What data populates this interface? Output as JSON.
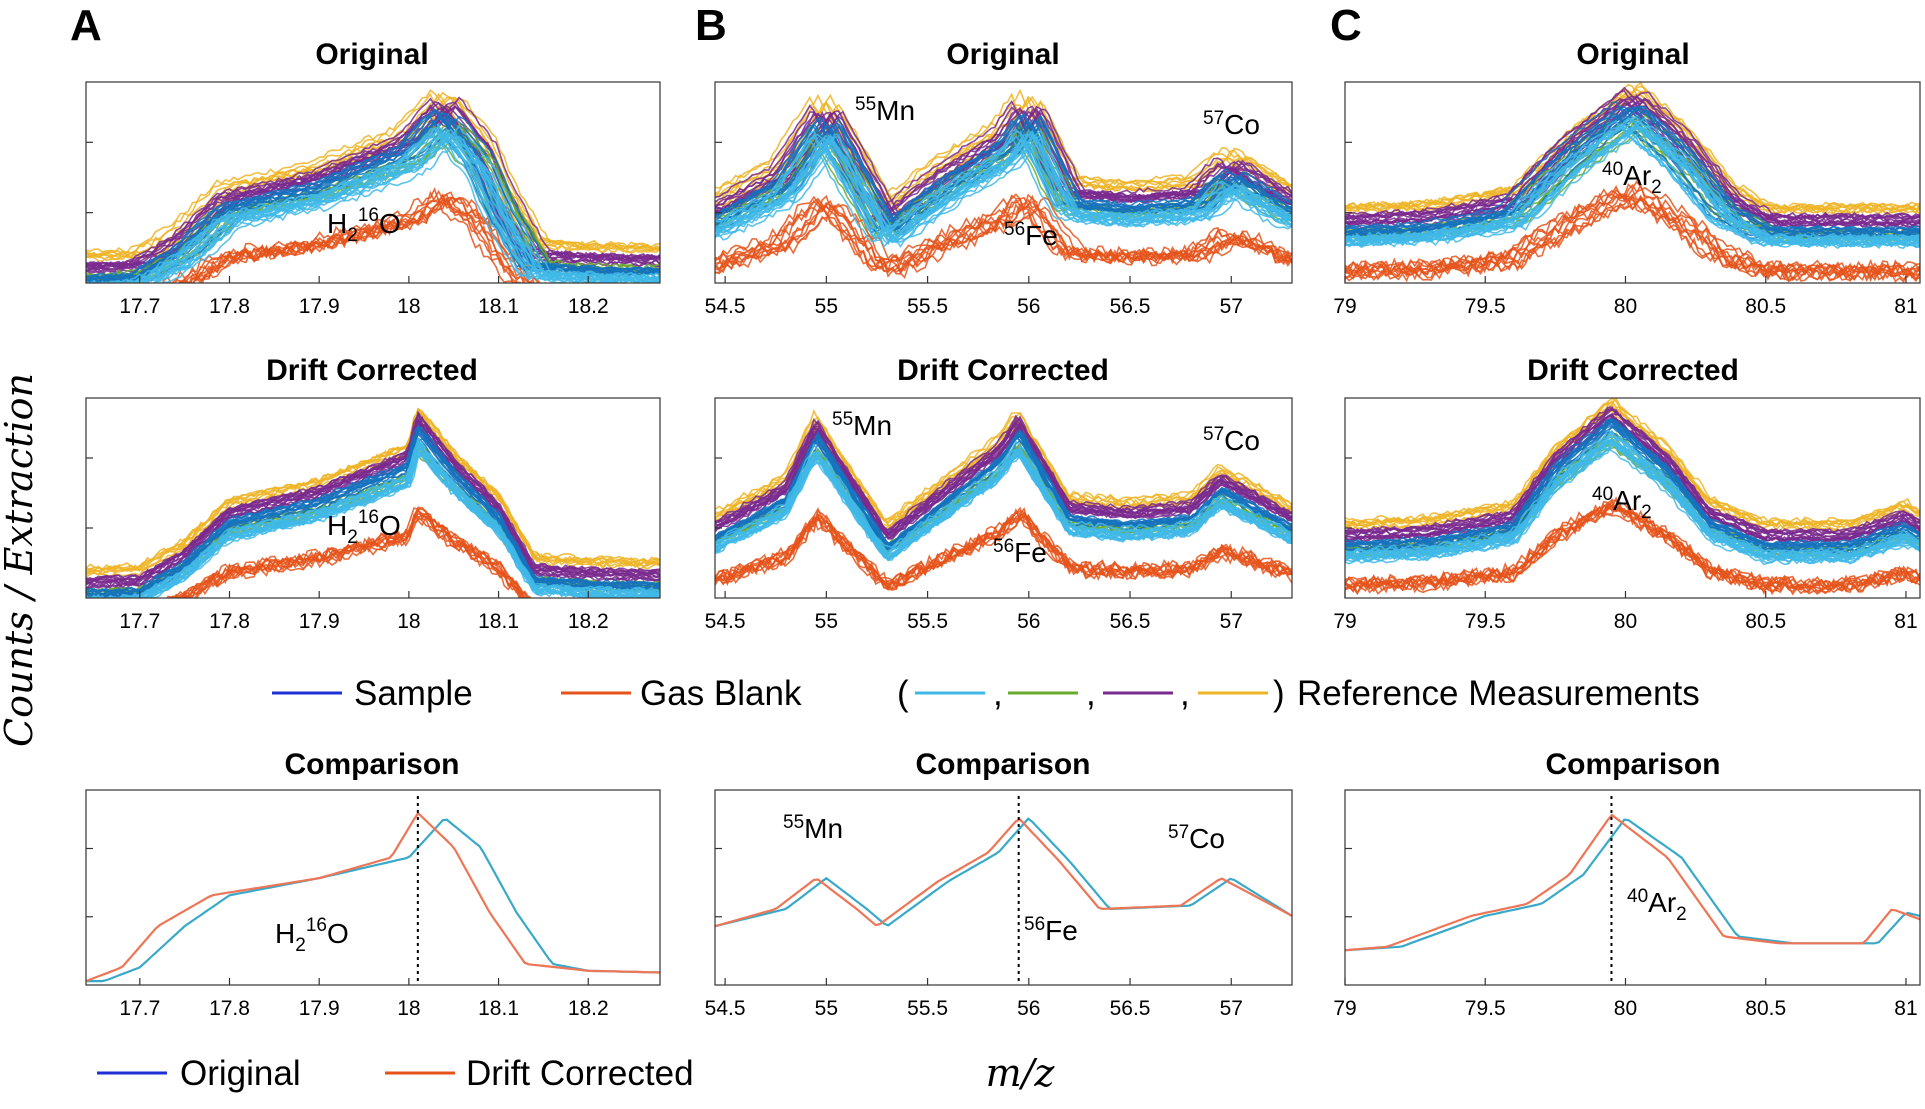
{
  "figure": {
    "ylabel": "Counts / Extraction",
    "xlabel": "m/z"
  },
  "colors": {
    "sample": "#1f2fd6",
    "gas_blank": "#e5531b",
    "ref1": "#3fb8e8",
    "ref2": "#6aaa2e",
    "ref3": "#7a2a8e",
    "ref4": "#eeb426",
    "original": "#3aa9c8",
    "drift_corrected": "#ee7555",
    "sample_dense": "#1572bd"
  },
  "legend_top": {
    "sample": "Sample",
    "gas_blank": "Gas Blank",
    "open_paren": "(",
    "comma": ",",
    "close_paren": ")",
    "reference": "Reference Measurements"
  },
  "legend_bottom": {
    "original": "Original",
    "drift_corrected": "Drift Corrected"
  },
  "panels": [
    {
      "letter": "A",
      "titles": [
        "Original",
        "Drift Corrected",
        "Comparison"
      ],
      "label_main": "H",
      "label_sub": "2",
      "label_sup": "16",
      "label_tail": "O"
    },
    {
      "letter": "B",
      "titles": [
        "Original",
        "Drift Corrected",
        "Comparison"
      ],
      "mn": {
        "sup": "55",
        "el": "Mn"
      },
      "fe": {
        "sup": "56",
        "el": "Fe"
      },
      "co": {
        "sup": "57",
        "el": "Co"
      }
    },
    {
      "letter": "C",
      "titles": [
        "Original",
        "Drift Corrected",
        "Comparison"
      ],
      "label_sup": "40",
      "label_main": "Ar",
      "label_sub": "2"
    }
  ],
  "chart_data": [
    {
      "type": "line",
      "title": "Original",
      "panel": "A",
      "x_ticks": [
        "17.7",
        "17.8",
        "17.9",
        "18",
        "18.1",
        "18.2"
      ],
      "xlim": [
        17.64,
        18.28
      ],
      "series": [
        {
          "x": [
            17.64,
            17.7,
            17.75,
            17.8,
            17.9,
            18.0,
            18.04,
            18.08,
            18.1,
            18.14,
            18.2,
            18.28
          ],
          "values": [
            0.05,
            0.06,
            0.2,
            0.42,
            0.53,
            0.72,
            0.92,
            0.68,
            0.45,
            0.12,
            0.1,
            0.09
          ]
        }
      ]
    },
    {
      "type": "line",
      "title": "Drift Corrected",
      "panel": "A",
      "x_ticks": [
        "17.7",
        "17.8",
        "17.9",
        "18",
        "18.1",
        "18.2"
      ],
      "xlim": [
        17.64,
        18.28
      ],
      "series": [
        {
          "x": [
            17.64,
            17.7,
            17.75,
            17.8,
            17.9,
            18.0,
            18.01,
            18.05,
            18.1,
            18.14,
            18.2,
            18.28
          ],
          "values": [
            0.05,
            0.06,
            0.2,
            0.42,
            0.53,
            0.72,
            0.92,
            0.68,
            0.45,
            0.12,
            0.1,
            0.09
          ]
        }
      ]
    },
    {
      "type": "line",
      "title": "Comparison",
      "panel": "A",
      "x_ticks": [
        "17.7",
        "17.8",
        "17.9",
        "18",
        "18.1",
        "18.2"
      ],
      "xlim": [
        17.64,
        18.28
      ],
      "series": [
        {
          "name": "Original",
          "x": [
            17.66,
            17.7,
            17.75,
            17.8,
            17.9,
            18.0,
            18.04,
            18.08,
            18.12,
            18.16,
            18.2,
            18.28
          ],
          "values": [
            0.0,
            0.08,
            0.32,
            0.5,
            0.6,
            0.72,
            0.95,
            0.78,
            0.4,
            0.1,
            0.06,
            0.05
          ]
        },
        {
          "name": "Drift Corrected",
          "x": [
            17.64,
            17.68,
            17.72,
            17.78,
            17.9,
            17.98,
            18.01,
            18.05,
            18.09,
            18.13,
            18.2,
            18.28
          ],
          "values": [
            0.0,
            0.08,
            0.32,
            0.5,
            0.6,
            0.72,
            0.98,
            0.78,
            0.4,
            0.1,
            0.06,
            0.05
          ]
        }
      ]
    },
    {
      "type": "line",
      "title": "Original",
      "panel": "B",
      "x_ticks": [
        "54.5",
        "55",
        "55.5",
        "56",
        "56.5",
        "57"
      ],
      "xlim": [
        54.45,
        57.3
      ],
      "series": [
        {
          "x": [
            54.45,
            54.8,
            55.0,
            55.3,
            55.6,
            55.9,
            56.0,
            56.2,
            56.5,
            56.85,
            57.0,
            57.3
          ],
          "values": [
            0.35,
            0.55,
            0.88,
            0.3,
            0.55,
            0.75,
            0.9,
            0.45,
            0.42,
            0.45,
            0.6,
            0.4
          ]
        }
      ]
    },
    {
      "type": "line",
      "title": "Drift Corrected",
      "panel": "B",
      "x_ticks": [
        "54.5",
        "55",
        "55.5",
        "56",
        "56.5",
        "57"
      ],
      "xlim": [
        54.45,
        57.3
      ],
      "series": [
        {
          "x": [
            54.45,
            54.8,
            54.95,
            55.3,
            55.6,
            55.85,
            55.95,
            56.2,
            56.5,
            56.8,
            56.95,
            57.3
          ],
          "values": [
            0.35,
            0.55,
            0.88,
            0.3,
            0.55,
            0.75,
            0.9,
            0.45,
            0.42,
            0.45,
            0.6,
            0.4
          ]
        }
      ]
    },
    {
      "type": "line",
      "title": "Comparison",
      "panel": "B",
      "x_ticks": [
        "54.5",
        "55",
        "55.5",
        "56",
        "56.5",
        "57"
      ],
      "xlim": [
        54.45,
        57.3
      ],
      "series": [
        {
          "name": "Original",
          "x": [
            54.45,
            54.8,
            55.0,
            55.2,
            55.3,
            55.6,
            55.85,
            56.0,
            56.2,
            56.4,
            56.8,
            57.0,
            57.3
          ],
          "values": [
            0.32,
            0.42,
            0.6,
            0.42,
            0.32,
            0.58,
            0.75,
            0.95,
            0.7,
            0.42,
            0.44,
            0.6,
            0.38
          ]
        },
        {
          "name": "Drift Corrected",
          "x": [
            54.45,
            54.75,
            54.95,
            55.15,
            55.25,
            55.55,
            55.8,
            55.95,
            56.15,
            56.35,
            56.75,
            56.95,
            57.3
          ],
          "values": [
            0.32,
            0.42,
            0.6,
            0.42,
            0.32,
            0.58,
            0.75,
            0.95,
            0.7,
            0.42,
            0.44,
            0.6,
            0.38
          ]
        }
      ]
    },
    {
      "type": "line",
      "title": "Original",
      "panel": "C",
      "x_ticks": [
        "79",
        "79.5",
        "80",
        "80.5",
        "81"
      ],
      "xlim": [
        79.0,
        81.05
      ],
      "series": [
        {
          "x": [
            79.0,
            79.3,
            79.6,
            79.8,
            80.02,
            80.2,
            80.35,
            80.5,
            80.8,
            81.05
          ],
          "values": [
            0.3,
            0.32,
            0.4,
            0.7,
            0.95,
            0.7,
            0.42,
            0.3,
            0.3,
            0.3
          ]
        }
      ]
    },
    {
      "type": "line",
      "title": "Drift Corrected",
      "panel": "C",
      "x_ticks": [
        "79",
        "79.5",
        "80",
        "80.5",
        "81"
      ],
      "xlim": [
        79.0,
        81.05
      ],
      "series": [
        {
          "x": [
            79.0,
            79.3,
            79.6,
            79.75,
            79.95,
            80.15,
            80.3,
            80.5,
            80.8,
            81.0,
            81.05
          ],
          "values": [
            0.3,
            0.32,
            0.4,
            0.7,
            0.95,
            0.7,
            0.42,
            0.3,
            0.3,
            0.4,
            0.35
          ]
        }
      ]
    },
    {
      "type": "line",
      "title": "Comparison",
      "panel": "C",
      "x_ticks": [
        "79",
        "79.5",
        "80",
        "80.5",
        "81"
      ],
      "xlim": [
        79.0,
        81.05
      ],
      "series": [
        {
          "name": "Original",
          "x": [
            79.0,
            79.2,
            79.5,
            79.7,
            79.85,
            80.0,
            80.2,
            80.4,
            80.6,
            80.9,
            81.0,
            81.05
          ],
          "values": [
            0.18,
            0.2,
            0.38,
            0.45,
            0.62,
            0.95,
            0.72,
            0.26,
            0.22,
            0.22,
            0.4,
            0.38
          ]
        },
        {
          "name": "Drift Corrected",
          "x": [
            79.0,
            79.15,
            79.45,
            79.65,
            79.8,
            79.95,
            80.15,
            80.35,
            80.55,
            80.85,
            80.95,
            81.05
          ],
          "values": [
            0.18,
            0.2,
            0.38,
            0.45,
            0.62,
            0.97,
            0.72,
            0.26,
            0.22,
            0.22,
            0.42,
            0.36
          ]
        }
      ]
    }
  ]
}
